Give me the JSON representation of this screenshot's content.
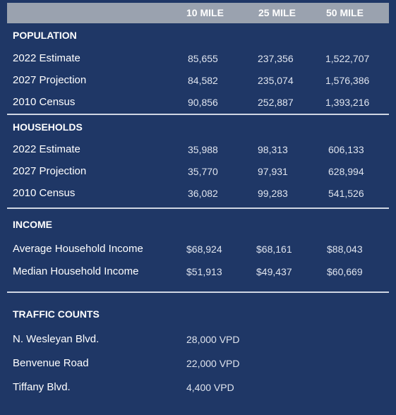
{
  "header": {
    "col1": "10 MILE",
    "col2": "25 MILE",
    "col3": "50 MILE"
  },
  "population": {
    "title": "POPULATION",
    "rows": [
      {
        "label": "2022 Estimate",
        "v10": "85,655",
        "v25": "237,356",
        "v50": "1,522,707"
      },
      {
        "label": "2027 Projection",
        "v10": "84,582",
        "v25": "235,074",
        "v50": "1,576,386"
      },
      {
        "label": "2010 Census",
        "v10": "90,856",
        "v25": "252,887",
        "v50": "1,393,216"
      }
    ]
  },
  "households": {
    "title": "HOUSEHOLDS",
    "rows": [
      {
        "label": "2022 Estimate",
        "v10": "35,988",
        "v25": "98,313",
        "v50": "606,133"
      },
      {
        "label": "2027 Projection",
        "v10": "35,770",
        "v25": "97,931",
        "v50": "628,994"
      },
      {
        "label": "2010 Census",
        "v10": "36,082",
        "v25": "99,283",
        "v50": "541,526"
      }
    ]
  },
  "income": {
    "title": "INCOME",
    "rows": [
      {
        "label": "Average Household Income",
        "v10": "$68,924",
        "v25": "$68,161",
        "v50": "$88,043"
      },
      {
        "label": "Median Household Income",
        "v10": "$51,913",
        "v25": "$49,437",
        "v50": "$60,669"
      }
    ]
  },
  "traffic": {
    "title": "TRAFFIC COUNTS",
    "rows": [
      {
        "label": "N. Wesleyan Blvd.",
        "value": "28,000 VPD"
      },
      {
        "label": "Benvenue Road",
        "value": "22,000 VPD"
      },
      {
        "label": "Tiffany Blvd.",
        "value": "4,400 VPD"
      }
    ]
  }
}
